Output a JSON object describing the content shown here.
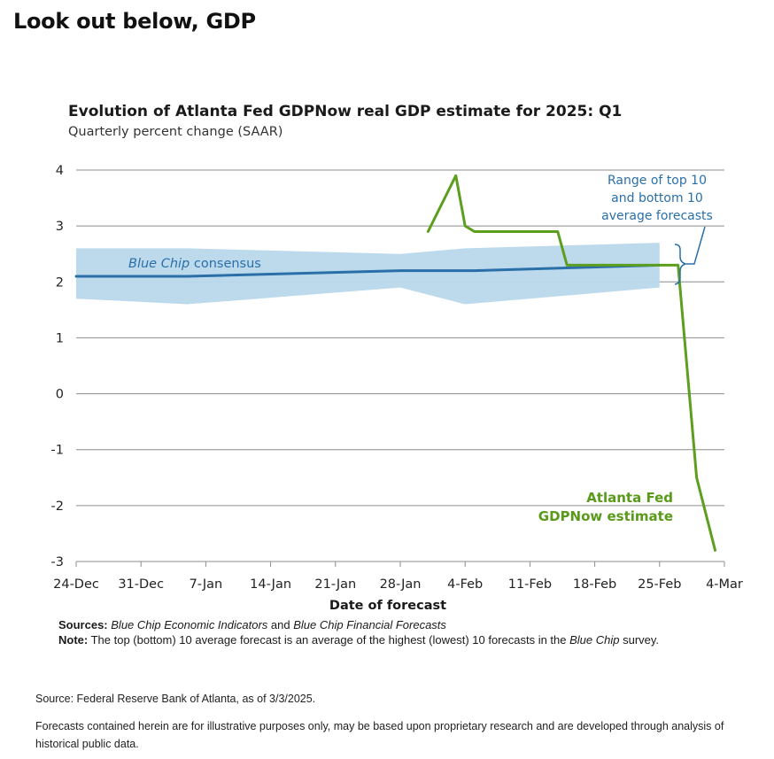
{
  "page": {
    "heading": "Look out below, GDP"
  },
  "chart_data": {
    "type": "line",
    "title": "Evolution of Atlanta Fed GDPNow real GDP estimate for 2025: Q1",
    "subtitle": "Quarterly percent change (SAAR)",
    "xlabel": "Date of forecast",
    "ylabel": "",
    "x_ticks": [
      "24-Dec",
      "31-Dec",
      "7-Jan",
      "14-Jan",
      "21-Jan",
      "28-Jan",
      "4-Feb",
      "11-Feb",
      "18-Feb",
      "25-Feb",
      "4-Mar"
    ],
    "y_ticks": [
      -3,
      -2,
      -1,
      0,
      1,
      2,
      3,
      4
    ],
    "ylim": [
      -3,
      4
    ],
    "xlim": [
      "2024-12-24",
      "2025-03-04"
    ],
    "grid": true,
    "series": [
      {
        "name": "Blue Chip consensus",
        "kind": "line",
        "color": "#2a6fa8",
        "x": [
          "2024-12-24",
          "2025-01-05",
          "2025-01-28",
          "2025-02-05",
          "2025-02-25"
        ],
        "y": [
          2.1,
          2.1,
          2.2,
          2.2,
          2.3
        ]
      },
      {
        "name": "Range of top 10 and bottom 10 average forecasts",
        "kind": "band",
        "color": "#b9d8ec",
        "x": [
          "2024-12-24",
          "2025-01-05",
          "2025-01-28",
          "2025-02-04",
          "2025-02-25"
        ],
        "upper": [
          2.6,
          2.6,
          2.5,
          2.6,
          2.7
        ],
        "lower": [
          1.7,
          1.6,
          1.9,
          1.6,
          1.9
        ]
      },
      {
        "name": "Atlanta Fed GDPNow estimate",
        "kind": "line",
        "color": "#5c9e1e",
        "x": [
          "2025-01-31",
          "2025-02-03",
          "2025-02-04",
          "2025-02-05",
          "2025-02-14",
          "2025-02-15",
          "2025-02-26",
          "2025-02-27",
          "2025-03-01",
          "2025-03-03"
        ],
        "y": [
          2.9,
          3.9,
          3.0,
          2.9,
          2.9,
          2.3,
          2.3,
          2.3,
          -1.5,
          -2.8
        ]
      }
    ],
    "annotations": {
      "band_label": [
        "Range of top 10",
        "and bottom 10",
        "average forecasts"
      ],
      "consensus_label_italic": "Blue Chip",
      "consensus_label_rest": " consensus",
      "gdpnow_label": [
        "Atlanta Fed",
        "GDPNow estimate"
      ]
    }
  },
  "notes": {
    "sources_label": "Sources:",
    "sources_italic_1": "Blue Chip Economic Indicators",
    "sources_mid": " and ",
    "sources_italic_2": "Blue Chip Financial Forecasts",
    "note_label": "Note:",
    "note_text_1": " The top (bottom) 10 average forecast is an average of the highest (lowest) 10 forecasts in the ",
    "note_italic": "Blue Chip",
    "note_text_2": " survey."
  },
  "footer": {
    "source": "Source: Federal Reserve Bank of Atlanta, as of 3/3/2025.",
    "disclaimer": "Forecasts contained herein are for illustrative purposes only, may be based upon proprietary research and are developed through analysis of historical public data."
  }
}
